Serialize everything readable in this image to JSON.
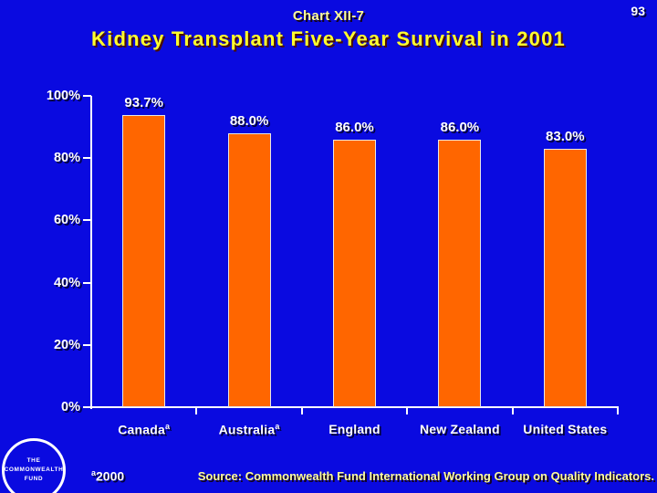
{
  "page_number": "93",
  "chart_label": "Chart XII-7",
  "title": "Kidney Transplant Five-Year Survival in 2001",
  "footnote": {
    "superscript": "a",
    "text": "2000"
  },
  "source": "Source: Commonwealth Fund International Working Group on Quality Indicators.",
  "logo": {
    "lines": [
      "THE",
      "COMMONWEALTH",
      "FUND"
    ]
  },
  "colors": {
    "background": "#0a0ae0",
    "bar": "#ff6600",
    "title_yellow": "#ffff2e",
    "pale_yellow": "#ffff99",
    "axis_white": "#ffffff"
  },
  "chart_data": {
    "type": "bar",
    "title": "Kidney Transplant Five-Year Survival in 2001",
    "categories": [
      "Canada",
      "Australia",
      "England",
      "New Zealand",
      "United States"
    ],
    "category_superscripts": [
      "a",
      "a",
      "",
      "",
      ""
    ],
    "values": [
      93.7,
      88.0,
      86.0,
      86.0,
      83.0
    ],
    "value_labels": [
      "93.7%",
      "88.0%",
      "86.0%",
      "86.0%",
      "83.0%"
    ],
    "xlabel": "",
    "ylabel": "",
    "ylim": [
      0,
      100
    ],
    "yticks": [
      0,
      20,
      40,
      60,
      80,
      100
    ],
    "ytick_labels": [
      "0%",
      "20%",
      "40%",
      "60%",
      "80%",
      "100%"
    ],
    "grid": "off",
    "legend": "none"
  }
}
